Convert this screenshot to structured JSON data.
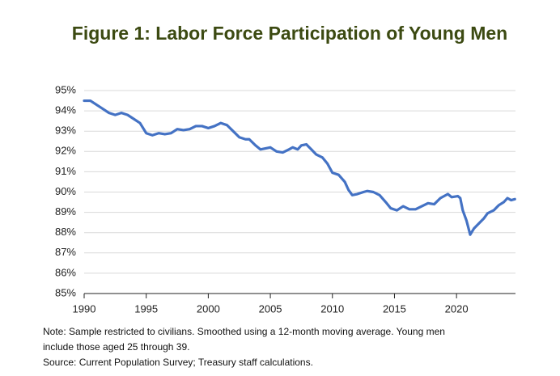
{
  "chart_data": {
    "type": "line",
    "title": "Figure 1: Labor Force Participation of Young Men",
    "note": [
      "Note: Sample restricted to civilians. Smoothed using a 12-month moving average. Young men",
      "include those aged 25 through 39.",
      "Source: Current Population Survey; Treasury staff calculations."
    ],
    "x": [
      1990,
      1990.5,
      1991,
      1991.5,
      1992,
      1992.5,
      1993,
      1993.5,
      1994,
      1994.5,
      1995,
      1995.5,
      1996,
      1996.5,
      1997,
      1997.5,
      1998,
      1998.5,
      1999,
      1999.5,
      2000,
      2000.5,
      2001,
      2001.5,
      2002,
      2002.5,
      2003,
      2003.3,
      2003.8,
      2004.2,
      2004.6,
      2005,
      2005.5,
      2006,
      2006.5,
      2006.8,
      2007.2,
      2007.5,
      2007.9,
      2008.3,
      2008.7,
      2009.2,
      2009.6,
      2010,
      2010.5,
      2011,
      2011.3,
      2011.6,
      2012,
      2012.5,
      2012.8,
      2013.3,
      2013.8,
      2014.3,
      2014.7,
      2015.2,
      2015.7,
      2016.2,
      2016.7,
      2017.2,
      2017.7,
      2018.2,
      2018.7,
      2019.3,
      2019.6,
      2020.1,
      2020.3,
      2020.5,
      2020.8,
      2021.1,
      2021.4,
      2021.8,
      2022.2,
      2022.5,
      2023,
      2023.4,
      2023.8,
      2024.1,
      2024.4,
      2024.7
    ],
    "series": [
      {
        "name": "Labor force participation",
        "color": "#4472c4",
        "values": [
          94.5,
          94.5,
          94.3,
          94.1,
          93.9,
          93.8,
          93.9,
          93.8,
          93.6,
          93.4,
          92.9,
          92.8,
          92.9,
          92.85,
          92.9,
          93.1,
          93.05,
          93.1,
          93.25,
          93.25,
          93.15,
          93.25,
          93.4,
          93.3,
          93.0,
          92.7,
          92.6,
          92.6,
          92.3,
          92.1,
          92.15,
          92.2,
          92.0,
          91.95,
          92.1,
          92.2,
          92.1,
          92.3,
          92.35,
          92.1,
          91.85,
          91.7,
          91.4,
          90.95,
          90.85,
          90.5,
          90.1,
          89.85,
          89.9,
          90.0,
          90.05,
          90.0,
          89.85,
          89.5,
          89.2,
          89.1,
          89.3,
          89.15,
          89.15,
          89.3,
          89.45,
          89.4,
          89.7,
          89.9,
          89.75,
          89.8,
          89.7,
          89.1,
          88.6,
          87.9,
          88.2,
          88.45,
          88.7,
          88.95,
          89.1,
          89.35,
          89.5,
          89.7,
          89.6,
          89.65
        ]
      }
    ],
    "xlim": [
      1990,
      2024.75
    ],
    "xticks": [
      1990,
      1995,
      2000,
      2005,
      2010,
      2015,
      2020
    ],
    "ylim": [
      85,
      95
    ],
    "yticks": [
      {
        "value": 85,
        "label": "85%"
      },
      {
        "value": 86,
        "label": "86%"
      },
      {
        "value": 87,
        "label": "87%"
      },
      {
        "value": 88,
        "label": "88%"
      },
      {
        "value": 89,
        "label": "89%"
      },
      {
        "value": 90,
        "label": "90%"
      },
      {
        "value": 91,
        "label": "91%"
      },
      {
        "value": 92,
        "label": "92%"
      },
      {
        "value": 93,
        "label": "93%"
      },
      {
        "value": 94,
        "label": "94%"
      },
      {
        "value": 95,
        "label": "95%"
      }
    ],
    "grid": true
  }
}
